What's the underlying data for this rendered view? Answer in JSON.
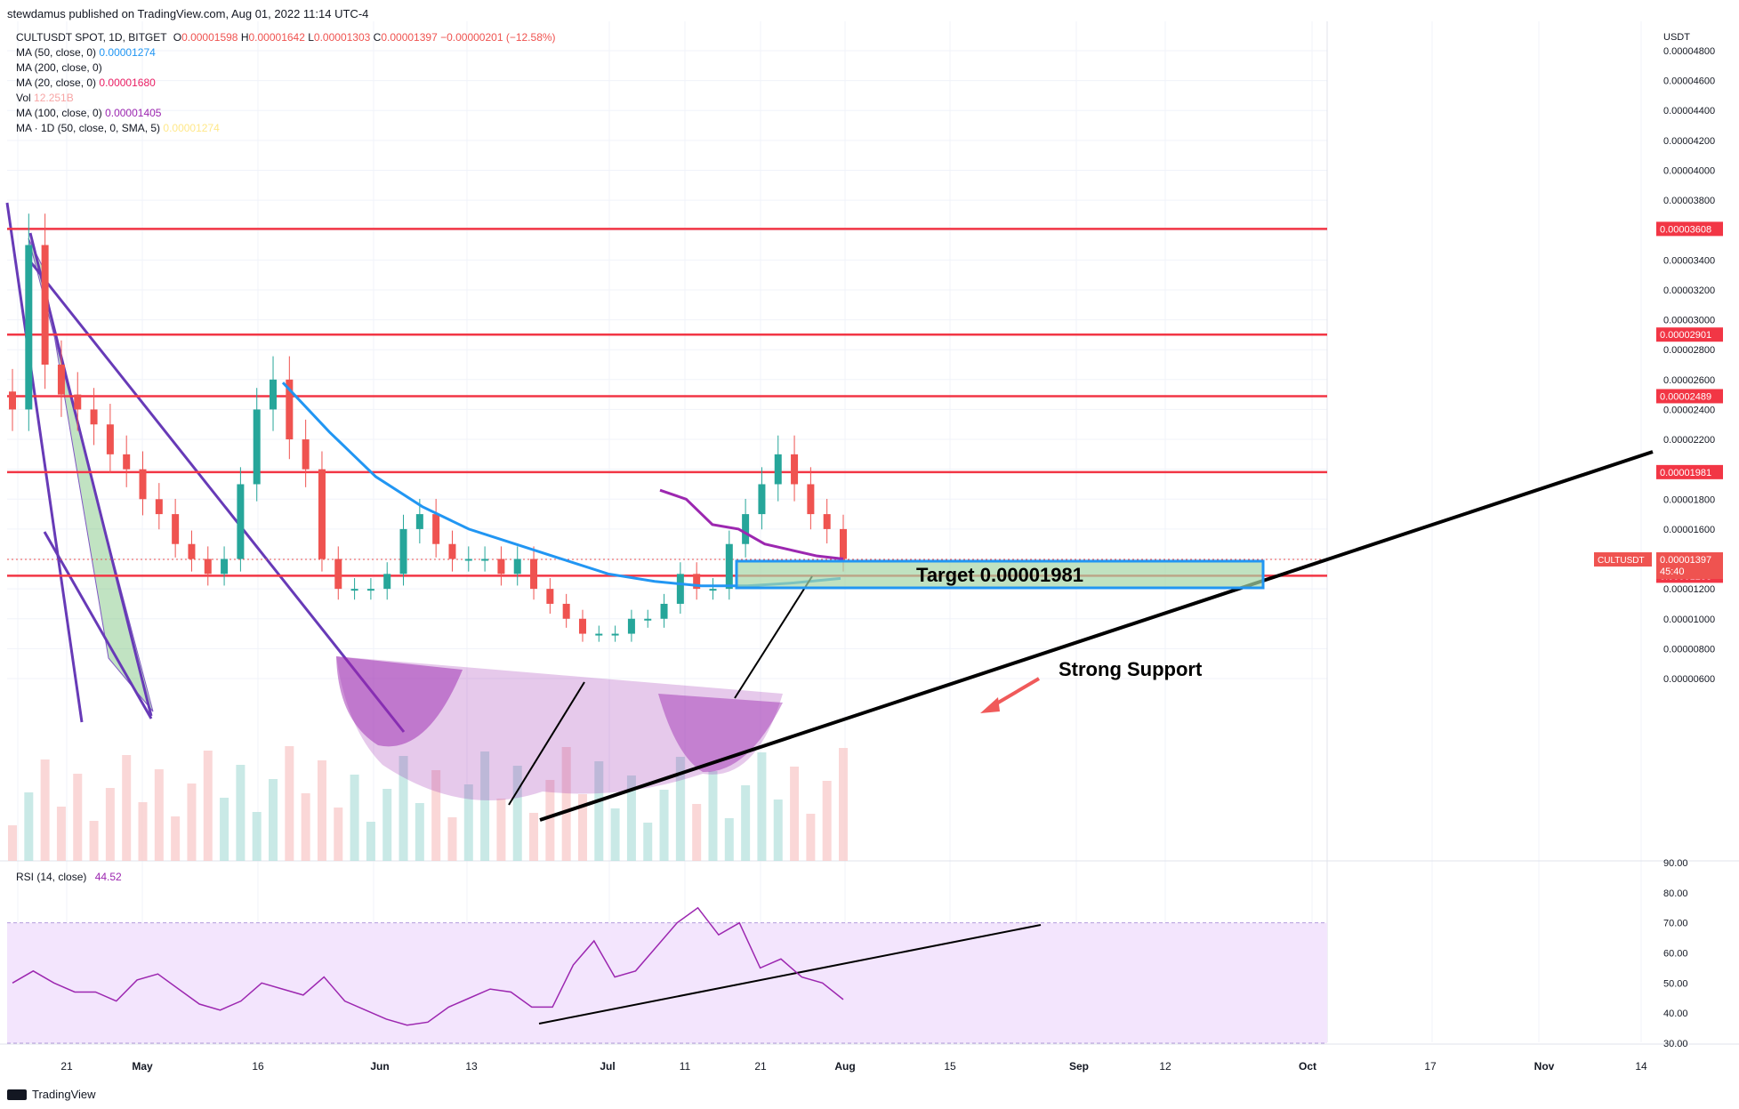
{
  "header": {
    "publisher": "stewdamus published on TradingView.com, Aug 01, 2022 11:14 UTC-4"
  },
  "legend": {
    "symbol_line": {
      "label": "CULTUSDT SPOT, 1D, BITGET",
      "o_label": "O",
      "o": "0.00001598",
      "h_label": "H",
      "h": "0.00001642",
      "l_label": "L",
      "l": "0.00001303",
      "c_label": "C",
      "c": "0.00001397",
      "change": "−0.00000201 (−12.58%)"
    },
    "indicators": [
      {
        "label": "MA (50, close, 0)",
        "value": "0.00001274",
        "color": "#2196f3"
      },
      {
        "label": "MA (200, close, 0)",
        "value": "",
        "color": "#131722"
      },
      {
        "label": "MA (20, close, 0)",
        "value": "0.00001680",
        "color": "#e91e63"
      },
      {
        "label": "Vol",
        "value": "12.251B",
        "color": "#f7a5a5"
      },
      {
        "label": "MA (100, close, 0)",
        "value": "0.00001405",
        "color": "#9c27b0"
      },
      {
        "label": "MA · 1D (50, close, 0, SMA, 5)",
        "value": "0.00001274",
        "color": "#ffe88a"
      }
    ]
  },
  "price_axis": {
    "unit": "USDT",
    "ticks": [
      "0.00004800",
      "0.00004600",
      "0.00004400",
      "0.00004200",
      "0.00004000",
      "0.00003800",
      "0.00003400",
      "0.00003200",
      "0.00003000",
      "0.00002800",
      "0.00002600",
      "0.00002400",
      "0.00002200",
      "0.00001800",
      "0.00001600",
      "0.00001200",
      "0.00001000",
      "0.00000800",
      "0.00000600"
    ],
    "levels": [
      {
        "label": "0.00003608",
        "value": 3.608e-05
      },
      {
        "label": "0.00002901",
        "value": 2.901e-05
      },
      {
        "label": "0.00002489",
        "value": 2.489e-05
      },
      {
        "label": "0.00001981",
        "value": 1.981e-05
      },
      {
        "label": "0.00001288",
        "value": 1.288e-05
      }
    ],
    "current": {
      "symbol": "CULTUSDT",
      "price": "0.00001397",
      "countdown": "45:40",
      "value": 1.397e-05
    }
  },
  "time_axis": {
    "labels": [
      "21",
      "May",
      "16",
      "Jun",
      "13",
      "Jul",
      "11",
      "21",
      "Aug",
      "15",
      "Sep",
      "12",
      "Oct",
      "17",
      "Nov",
      "14"
    ]
  },
  "rsi": {
    "label": "RSI (14, close)",
    "value": "44.52",
    "ticks": [
      "90.00",
      "80.00",
      "70.00",
      "60.00",
      "50.00",
      "40.00",
      "30.00"
    ],
    "upper": 70,
    "lower": 30
  },
  "annotations": {
    "target": "Target 0.00001981",
    "support": "Strong Support"
  },
  "footer": {
    "brand": "TradingView"
  },
  "colors": {
    "up": "#26a69a",
    "down": "#ef5350",
    "level": "#f23645",
    "ma50": "#2196f3",
    "ma20": "#e91e63",
    "ma100": "#9c27b0",
    "pattern": "#9c27b0",
    "rsi": "#9c27b0",
    "rsi_band": "#f3e5fd"
  },
  "chart_data": {
    "type": "candlestick",
    "ylim": [
      5.6e-06,
      4.9e-06
    ],
    "series": [
      {
        "name": "CULTUSDT",
        "ohlc_close": [
          2.4e-05,
          3.5e-05,
          2.7e-05,
          2.5e-05,
          2.4e-05,
          2.3e-05,
          2.1e-05,
          2e-05,
          1.8e-05,
          1.7e-05,
          1.5e-05,
          1.4e-05,
          1.3e-05,
          1.4e-05,
          1.9e-05,
          2.4e-05,
          2.6e-05,
          2.2e-05,
          2e-05,
          1.4e-05,
          1.2e-05,
          1.2e-05,
          1.2e-05,
          1.3e-05,
          1.6e-05,
          1.7e-05,
          1.5e-05,
          1.4e-05,
          1.4e-05,
          1.4e-05,
          1.3e-05,
          1.4e-05,
          1.2e-05,
          1.1e-05,
          1e-05,
          9e-06,
          9e-06,
          9e-06,
          1e-05,
          1e-05,
          1.1e-05,
          1.3e-05,
          1.2e-05,
          1.2e-05,
          1.5e-05,
          1.7e-05,
          1.9e-05,
          2.1e-05,
          1.9e-05,
          1.7e-05,
          1.6e-05,
          1.4e-05
        ]
      },
      {
        "name": "MA (50, close, 0)",
        "values": [
          2.58e-05,
          2.25e-05,
          1.95e-05,
          1.75e-05,
          1.6e-05,
          1.5e-05,
          1.4e-05,
          1.3e-05,
          1.25e-05,
          1.22e-05,
          1.22e-05,
          1.24e-05,
          1.27e-05
        ]
      },
      {
        "name": "MA (100, close, 0)",
        "values": [
          1.86e-05,
          1.8e-05,
          1.63e-05,
          1.6e-05,
          1.5e-05,
          1.46e-05,
          1.42e-05,
          1.4e-05
        ]
      },
      {
        "name": "RSI (14, close)",
        "values": [
          50,
          54,
          50,
          47,
          47,
          44,
          51,
          53,
          48,
          43,
          41,
          44,
          50,
          48,
          46,
          52,
          44,
          41,
          38,
          36,
          37,
          42,
          45,
          48,
          47,
          42,
          42,
          56,
          64,
          52,
          54,
          62,
          70,
          75,
          66,
          70,
          55,
          58,
          52,
          50,
          44.52
        ]
      }
    ]
  }
}
